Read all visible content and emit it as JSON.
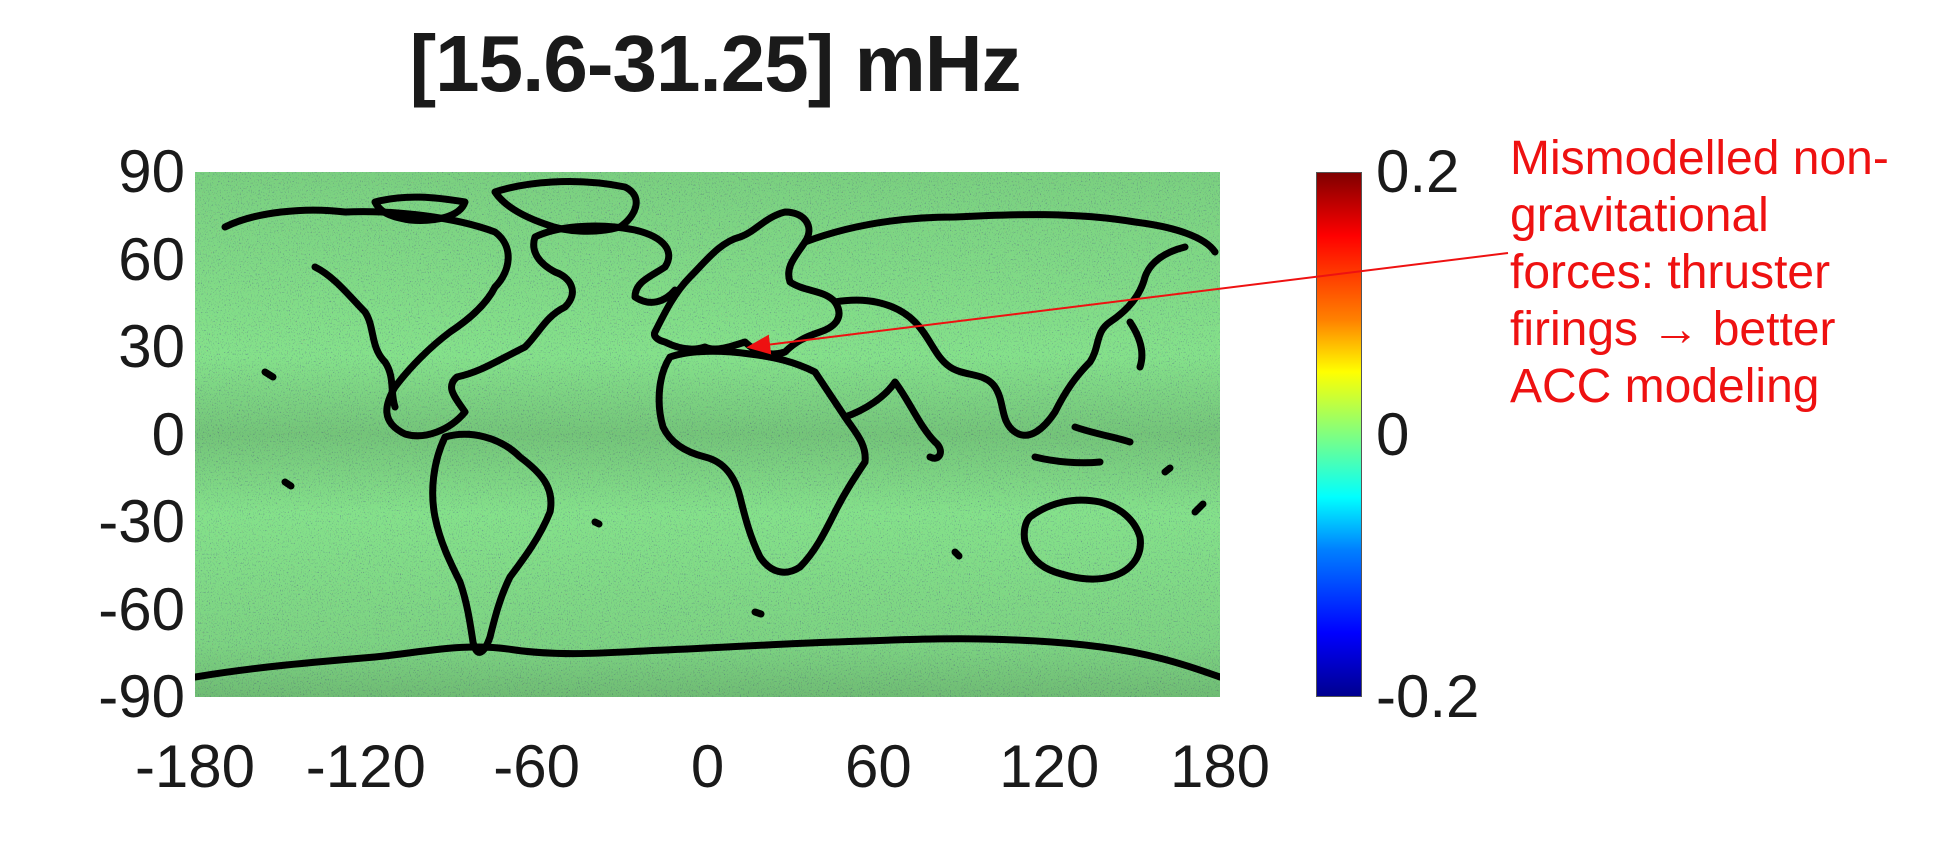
{
  "chart_data": {
    "type": "heatmap",
    "title": "[15.6-31.25] mHz",
    "xlabel": "",
    "ylabel": "",
    "xlim": [
      -180,
      180
    ],
    "ylim": [
      -90,
      90
    ],
    "xticks": [
      -180,
      -120,
      -60,
      0,
      60,
      120,
      180
    ],
    "xtick_labels": [
      "-180",
      "-120",
      "-60",
      "0",
      "60",
      "120",
      "180"
    ],
    "yticks": [
      90,
      60,
      30,
      0,
      -30,
      -60,
      -90
    ],
    "ytick_labels": [
      "90",
      "60",
      "30",
      "0",
      "-30",
      "-60",
      "-90"
    ],
    "colorbar": {
      "colormap": "jet",
      "range": [
        -0.2,
        0.2
      ],
      "ticks": [
        0.2,
        0,
        -0.2
      ],
      "tick_labels": [
        "0.2",
        "0",
        "-0.2"
      ]
    },
    "overlay": "coastlines",
    "grid": false,
    "annotation": {
      "text": "Mismodelled non-\ngravitational\nforces: thruster\nfirings → better\nACC modeling",
      "color": "#ee1111",
      "points_to": {
        "lon": 15,
        "lat": 30
      }
    }
  },
  "colors": {
    "ocean_background": "#86e48c",
    "coastline": "#000000",
    "annotation": "#ee1111"
  }
}
